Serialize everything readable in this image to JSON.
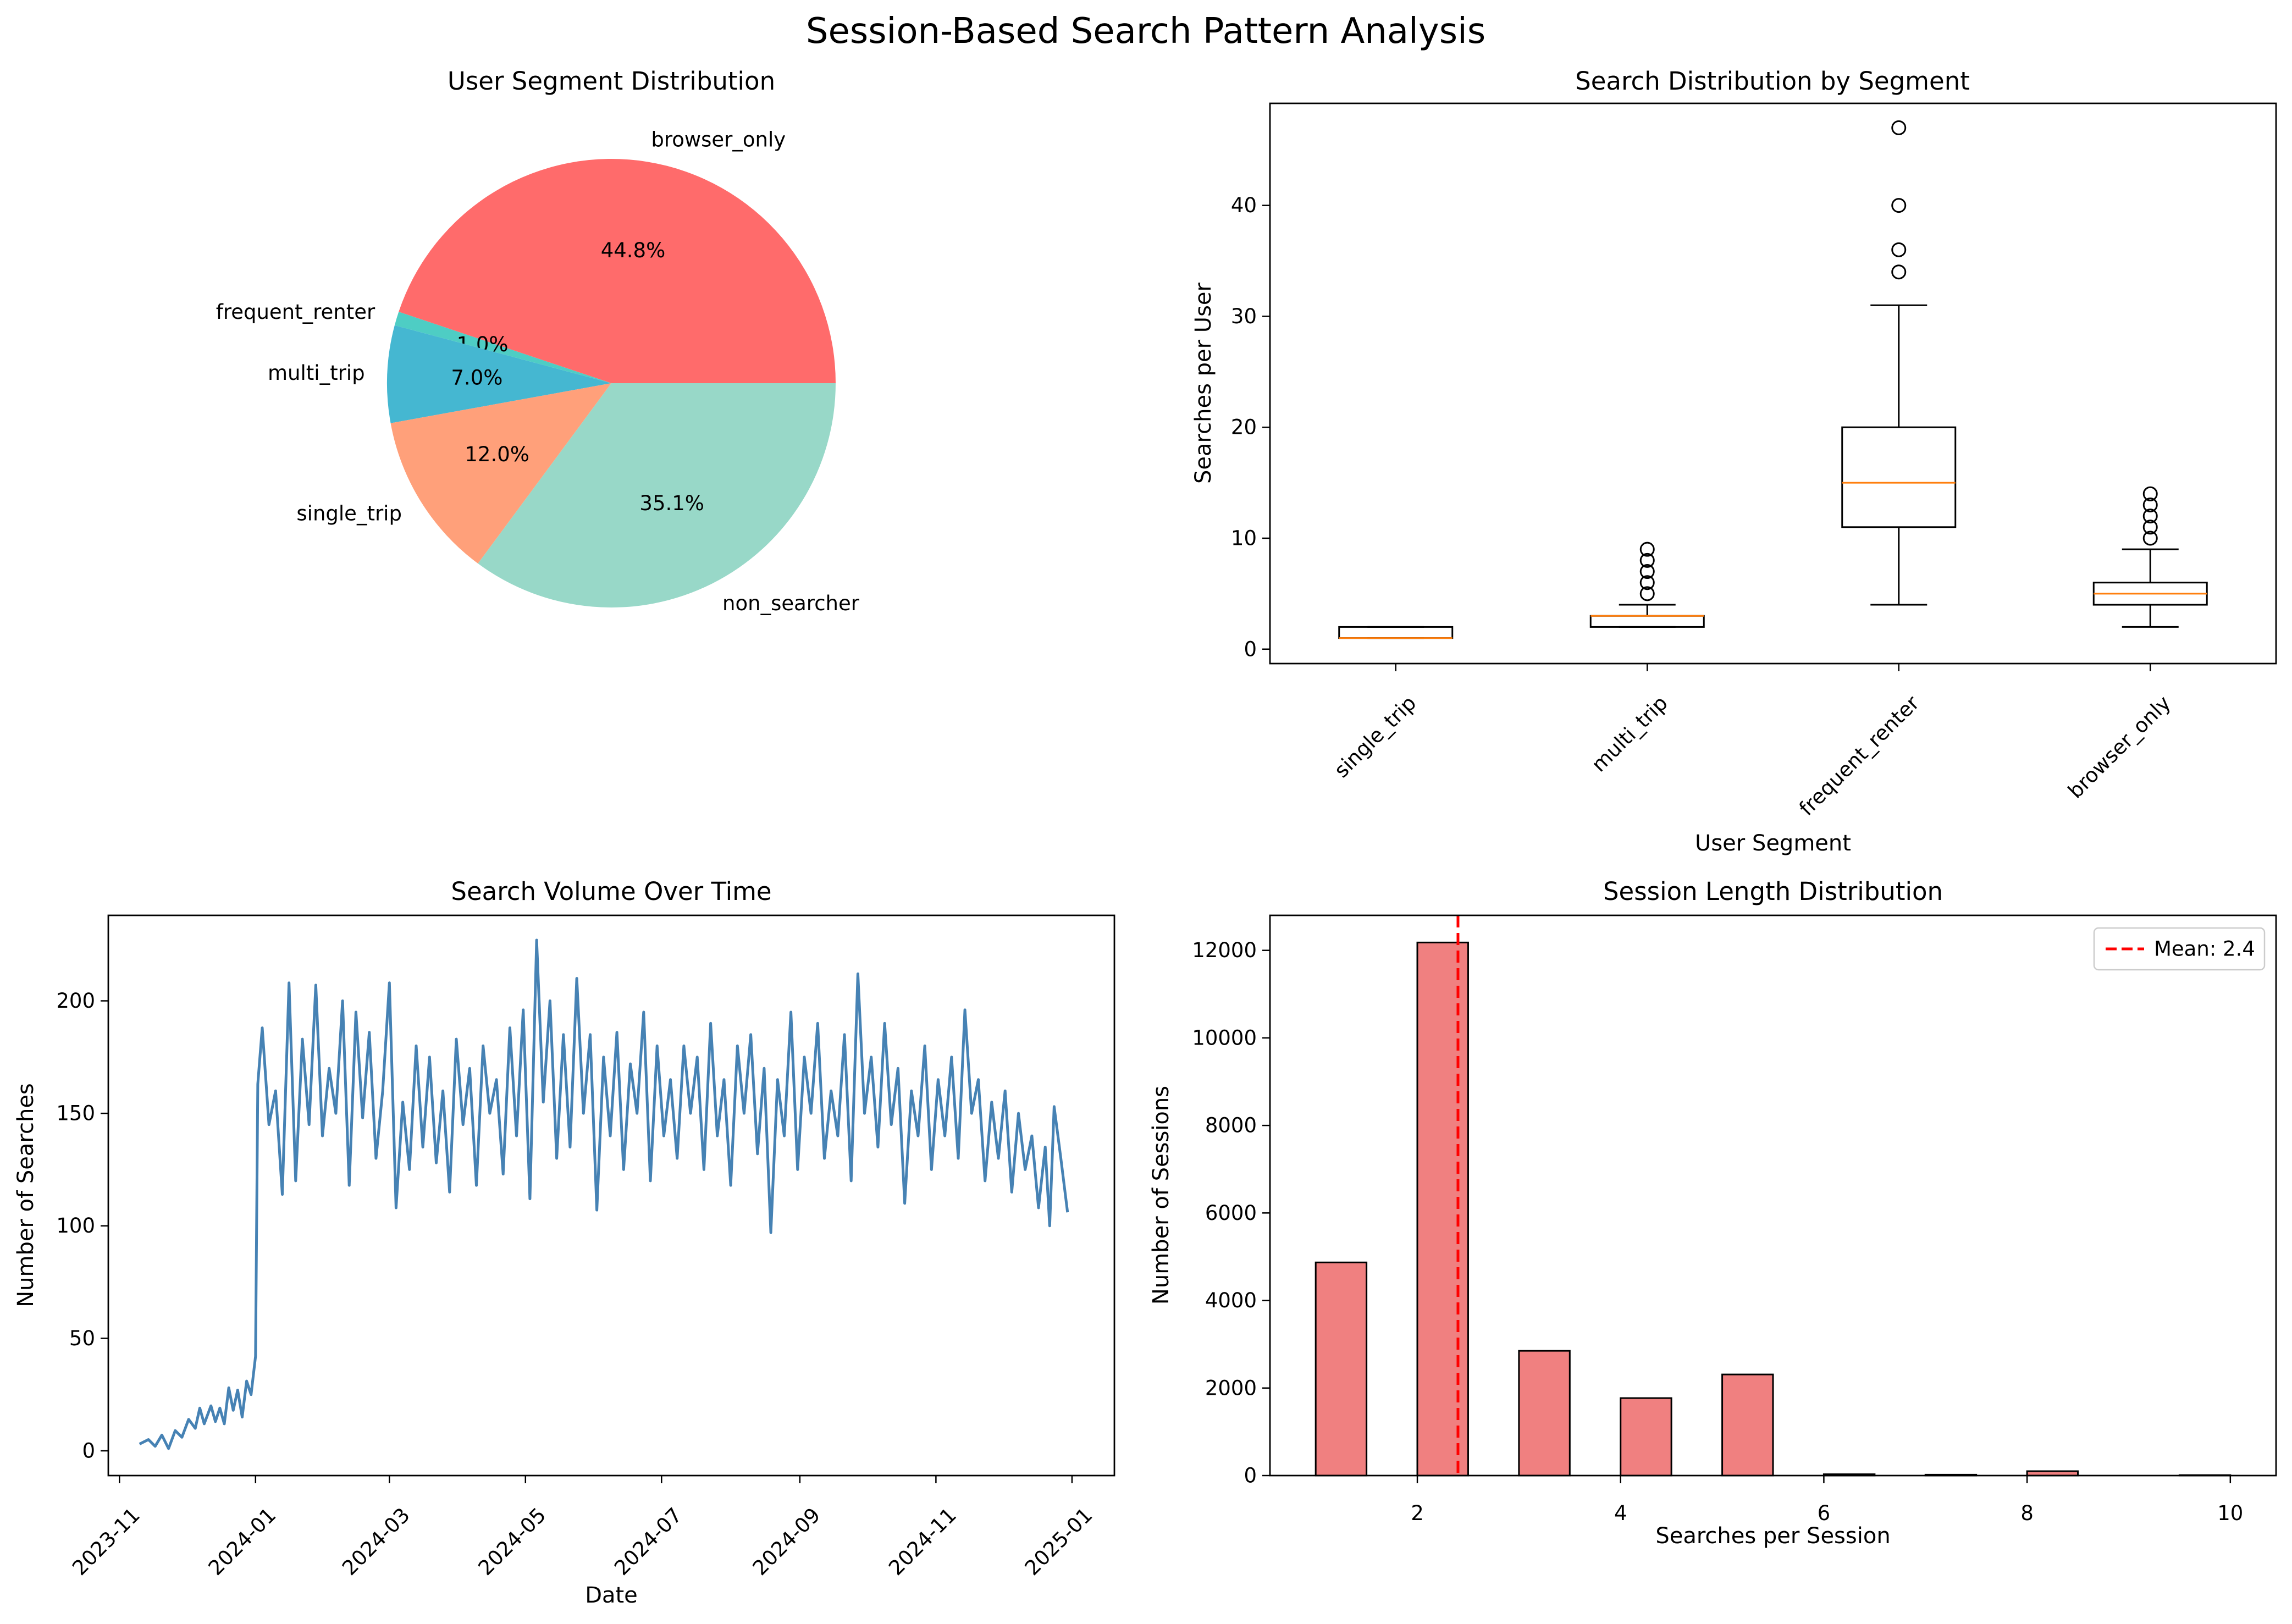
{
  "figure": {
    "suptitle": "Session-Based Search Pattern Analysis"
  },
  "chart_data": [
    {
      "type": "pie",
      "title": "User Segment Distribution",
      "slices": [
        {
          "label": "browser_only",
          "pct_label": "44.8%",
          "value": 44.8,
          "color": "#ff6b6b"
        },
        {
          "label": "frequent_renter",
          "pct_label": "1.0%",
          "value": 1.0,
          "color": "#4ecdc4"
        },
        {
          "label": "multi_trip",
          "pct_label": "7.0%",
          "value": 7.0,
          "color": "#45b7d1"
        },
        {
          "label": "single_trip",
          "pct_label": "12.0%",
          "value": 12.0,
          "color": "#ffa07a"
        },
        {
          "label": "non_searcher",
          "pct_label": "35.1%",
          "value": 35.1,
          "color": "#98d8c8"
        }
      ]
    },
    {
      "type": "box",
      "title": "Search Distribution by Segment",
      "xlabel": "User Segment",
      "ylabel": "Searches per User",
      "ylim": [
        -1.3,
        49.2
      ],
      "yticks": [
        0,
        10,
        20,
        30,
        40
      ],
      "median_color": "#ff7f0e",
      "boxes": [
        {
          "label": "single_trip",
          "whisker_low": 1,
          "q1": 1,
          "median": 1,
          "q3": 2,
          "whisker_high": 2,
          "outliers": []
        },
        {
          "label": "multi_trip",
          "whisker_low": 2,
          "q1": 2,
          "median": 3,
          "q3": 3,
          "whisker_high": 4,
          "outliers": [
            5,
            6,
            7,
            8,
            9
          ]
        },
        {
          "label": "frequent_renter",
          "whisker_low": 4,
          "q1": 11,
          "median": 15,
          "q3": 20,
          "whisker_high": 31,
          "outliers": [
            34,
            36,
            40,
            47
          ]
        },
        {
          "label": "browser_only",
          "whisker_low": 2,
          "q1": 4,
          "median": 5,
          "q3": 6,
          "whisker_high": 9,
          "outliers": [
            10,
            11,
            12,
            13,
            14
          ]
        }
      ]
    },
    {
      "type": "line",
      "title": "Search Volume Over Time",
      "xlabel": "Date",
      "ylabel": "Number of Searches",
      "color": "#4682b4",
      "ylim": [
        -11,
        238
      ],
      "xlim": [
        "2023-10-27",
        "2025-01-20"
      ],
      "yticks": [
        0,
        50,
        100,
        150,
        200
      ],
      "xticks": [
        "2023-11",
        "2024-01",
        "2024-03",
        "2024-05",
        "2024-07",
        "2024-09",
        "2024-11",
        "2025-01"
      ],
      "series": [
        {
          "x": "2023-11-10",
          "y": 3
        },
        {
          "x": "2023-11-14",
          "y": 5
        },
        {
          "x": "2023-11-17",
          "y": 2
        },
        {
          "x": "2023-11-20",
          "y": 7
        },
        {
          "x": "2023-11-23",
          "y": 1
        },
        {
          "x": "2023-11-26",
          "y": 9
        },
        {
          "x": "2023-11-29",
          "y": 6
        },
        {
          "x": "2023-12-02",
          "y": 14
        },
        {
          "x": "2023-12-05",
          "y": 10
        },
        {
          "x": "2023-12-07",
          "y": 19
        },
        {
          "x": "2023-12-09",
          "y": 12
        },
        {
          "x": "2023-12-12",
          "y": 20
        },
        {
          "x": "2023-12-14",
          "y": 13
        },
        {
          "x": "2023-12-16",
          "y": 19
        },
        {
          "x": "2023-12-18",
          "y": 12
        },
        {
          "x": "2023-12-20",
          "y": 28
        },
        {
          "x": "2023-12-22",
          "y": 18
        },
        {
          "x": "2023-12-24",
          "y": 27
        },
        {
          "x": "2023-12-26",
          "y": 15
        },
        {
          "x": "2023-12-28",
          "y": 31
        },
        {
          "x": "2023-12-30",
          "y": 25
        },
        {
          "x": "2024-01-01",
          "y": 42
        },
        {
          "x": "2024-01-02",
          "y": 163
        },
        {
          "x": "2024-01-04",
          "y": 188
        },
        {
          "x": "2024-01-07",
          "y": 145
        },
        {
          "x": "2024-01-10",
          "y": 160
        },
        {
          "x": "2024-01-13",
          "y": 114
        },
        {
          "x": "2024-01-16",
          "y": 208
        },
        {
          "x": "2024-01-19",
          "y": 120
        },
        {
          "x": "2024-01-22",
          "y": 183
        },
        {
          "x": "2024-01-25",
          "y": 145
        },
        {
          "x": "2024-01-28",
          "y": 207
        },
        {
          "x": "2024-01-31",
          "y": 140
        },
        {
          "x": "2024-02-03",
          "y": 170
        },
        {
          "x": "2024-02-06",
          "y": 150
        },
        {
          "x": "2024-02-09",
          "y": 200
        },
        {
          "x": "2024-02-12",
          "y": 118
        },
        {
          "x": "2024-02-15",
          "y": 195
        },
        {
          "x": "2024-02-18",
          "y": 148
        },
        {
          "x": "2024-02-21",
          "y": 186
        },
        {
          "x": "2024-02-24",
          "y": 130
        },
        {
          "x": "2024-02-27",
          "y": 160
        },
        {
          "x": "2024-03-01",
          "y": 208
        },
        {
          "x": "2024-03-04",
          "y": 108
        },
        {
          "x": "2024-03-07",
          "y": 155
        },
        {
          "x": "2024-03-10",
          "y": 125
        },
        {
          "x": "2024-03-13",
          "y": 180
        },
        {
          "x": "2024-03-16",
          "y": 135
        },
        {
          "x": "2024-03-19",
          "y": 175
        },
        {
          "x": "2024-03-22",
          "y": 128
        },
        {
          "x": "2024-03-25",
          "y": 160
        },
        {
          "x": "2024-03-28",
          "y": 115
        },
        {
          "x": "2024-03-31",
          "y": 183
        },
        {
          "x": "2024-04-03",
          "y": 145
        },
        {
          "x": "2024-04-06",
          "y": 170
        },
        {
          "x": "2024-04-09",
          "y": 118
        },
        {
          "x": "2024-04-12",
          "y": 180
        },
        {
          "x": "2024-04-15",
          "y": 150
        },
        {
          "x": "2024-04-18",
          "y": 165
        },
        {
          "x": "2024-04-21",
          "y": 123
        },
        {
          "x": "2024-04-24",
          "y": 188
        },
        {
          "x": "2024-04-27",
          "y": 140
        },
        {
          "x": "2024-04-30",
          "y": 196
        },
        {
          "x": "2024-05-03",
          "y": 112
        },
        {
          "x": "2024-05-06",
          "y": 227
        },
        {
          "x": "2024-05-09",
          "y": 155
        },
        {
          "x": "2024-05-12",
          "y": 200
        },
        {
          "x": "2024-05-15",
          "y": 130
        },
        {
          "x": "2024-05-18",
          "y": 185
        },
        {
          "x": "2024-05-21",
          "y": 135
        },
        {
          "x": "2024-05-24",
          "y": 210
        },
        {
          "x": "2024-05-27",
          "y": 150
        },
        {
          "x": "2024-05-30",
          "y": 185
        },
        {
          "x": "2024-06-02",
          "y": 107
        },
        {
          "x": "2024-06-05",
          "y": 175
        },
        {
          "x": "2024-06-08",
          "y": 140
        },
        {
          "x": "2024-06-11",
          "y": 186
        },
        {
          "x": "2024-06-14",
          "y": 125
        },
        {
          "x": "2024-06-17",
          "y": 172
        },
        {
          "x": "2024-06-20",
          "y": 150
        },
        {
          "x": "2024-06-23",
          "y": 195
        },
        {
          "x": "2024-06-26",
          "y": 120
        },
        {
          "x": "2024-06-29",
          "y": 180
        },
        {
          "x": "2024-07-02",
          "y": 140
        },
        {
          "x": "2024-07-05",
          "y": 165
        },
        {
          "x": "2024-07-08",
          "y": 130
        },
        {
          "x": "2024-07-11",
          "y": 180
        },
        {
          "x": "2024-07-14",
          "y": 150
        },
        {
          "x": "2024-07-17",
          "y": 175
        },
        {
          "x": "2024-07-20",
          "y": 125
        },
        {
          "x": "2024-07-23",
          "y": 190
        },
        {
          "x": "2024-07-26",
          "y": 140
        },
        {
          "x": "2024-07-29",
          "y": 165
        },
        {
          "x": "2024-08-01",
          "y": 118
        },
        {
          "x": "2024-08-04",
          "y": 180
        },
        {
          "x": "2024-08-07",
          "y": 150
        },
        {
          "x": "2024-08-10",
          "y": 185
        },
        {
          "x": "2024-08-13",
          "y": 132
        },
        {
          "x": "2024-08-16",
          "y": 170
        },
        {
          "x": "2024-08-19",
          "y": 97
        },
        {
          "x": "2024-08-22",
          "y": 165
        },
        {
          "x": "2024-08-25",
          "y": 140
        },
        {
          "x": "2024-08-28",
          "y": 195
        },
        {
          "x": "2024-08-31",
          "y": 125
        },
        {
          "x": "2024-09-03",
          "y": 175
        },
        {
          "x": "2024-09-06",
          "y": 150
        },
        {
          "x": "2024-09-09",
          "y": 190
        },
        {
          "x": "2024-09-12",
          "y": 130
        },
        {
          "x": "2024-09-15",
          "y": 160
        },
        {
          "x": "2024-09-18",
          "y": 140
        },
        {
          "x": "2024-09-21",
          "y": 185
        },
        {
          "x": "2024-09-24",
          "y": 120
        },
        {
          "x": "2024-09-27",
          "y": 212
        },
        {
          "x": "2024-09-30",
          "y": 150
        },
        {
          "x": "2024-10-03",
          "y": 175
        },
        {
          "x": "2024-10-06",
          "y": 135
        },
        {
          "x": "2024-10-09",
          "y": 190
        },
        {
          "x": "2024-10-12",
          "y": 145
        },
        {
          "x": "2024-10-15",
          "y": 170
        },
        {
          "x": "2024-10-18",
          "y": 110
        },
        {
          "x": "2024-10-21",
          "y": 160
        },
        {
          "x": "2024-10-24",
          "y": 140
        },
        {
          "x": "2024-10-27",
          "y": 180
        },
        {
          "x": "2024-10-30",
          "y": 125
        },
        {
          "x": "2024-11-02",
          "y": 165
        },
        {
          "x": "2024-11-05",
          "y": 140
        },
        {
          "x": "2024-11-08",
          "y": 175
        },
        {
          "x": "2024-11-11",
          "y": 130
        },
        {
          "x": "2024-11-14",
          "y": 196
        },
        {
          "x": "2024-11-17",
          "y": 150
        },
        {
          "x": "2024-11-20",
          "y": 165
        },
        {
          "x": "2024-11-23",
          "y": 120
        },
        {
          "x": "2024-11-26",
          "y": 155
        },
        {
          "x": "2024-11-29",
          "y": 130
        },
        {
          "x": "2024-12-02",
          "y": 160
        },
        {
          "x": "2024-12-05",
          "y": 115
        },
        {
          "x": "2024-12-08",
          "y": 150
        },
        {
          "x": "2024-12-11",
          "y": 125
        },
        {
          "x": "2024-12-14",
          "y": 140
        },
        {
          "x": "2024-12-17",
          "y": 108
        },
        {
          "x": "2024-12-20",
          "y": 135
        },
        {
          "x": "2024-12-22",
          "y": 100
        },
        {
          "x": "2024-12-24",
          "y": 153
        },
        {
          "x": "2024-12-27",
          "y": 130
        },
        {
          "x": "2024-12-30",
          "y": 106
        }
      ]
    },
    {
      "type": "bar",
      "title": "Session Length Distribution",
      "xlabel": "Searches per Session",
      "ylabel": "Number of Sessions",
      "color": "#f08080",
      "xlim": [
        0.55,
        10.45
      ],
      "ylim": [
        0,
        12800
      ],
      "xticks": [
        2,
        4,
        6,
        8,
        10
      ],
      "yticks": [
        0,
        2000,
        4000,
        6000,
        8000,
        10000,
        12000
      ],
      "bar_width": 0.5,
      "bins": [
        {
          "x": 1,
          "value": 4870
        },
        {
          "x": 2,
          "value": 12180
        },
        {
          "x": 3,
          "value": 2850
        },
        {
          "x": 4,
          "value": 1770
        },
        {
          "x": 5,
          "value": 2310
        },
        {
          "x": 6,
          "value": 30
        },
        {
          "x": 7,
          "value": 20
        },
        {
          "x": 8,
          "value": 100
        },
        {
          "x": 9.5,
          "value": 10
        }
      ],
      "mean": {
        "value": 2.4,
        "label": "Mean: 2.4",
        "color": "#ff0000"
      }
    }
  ]
}
